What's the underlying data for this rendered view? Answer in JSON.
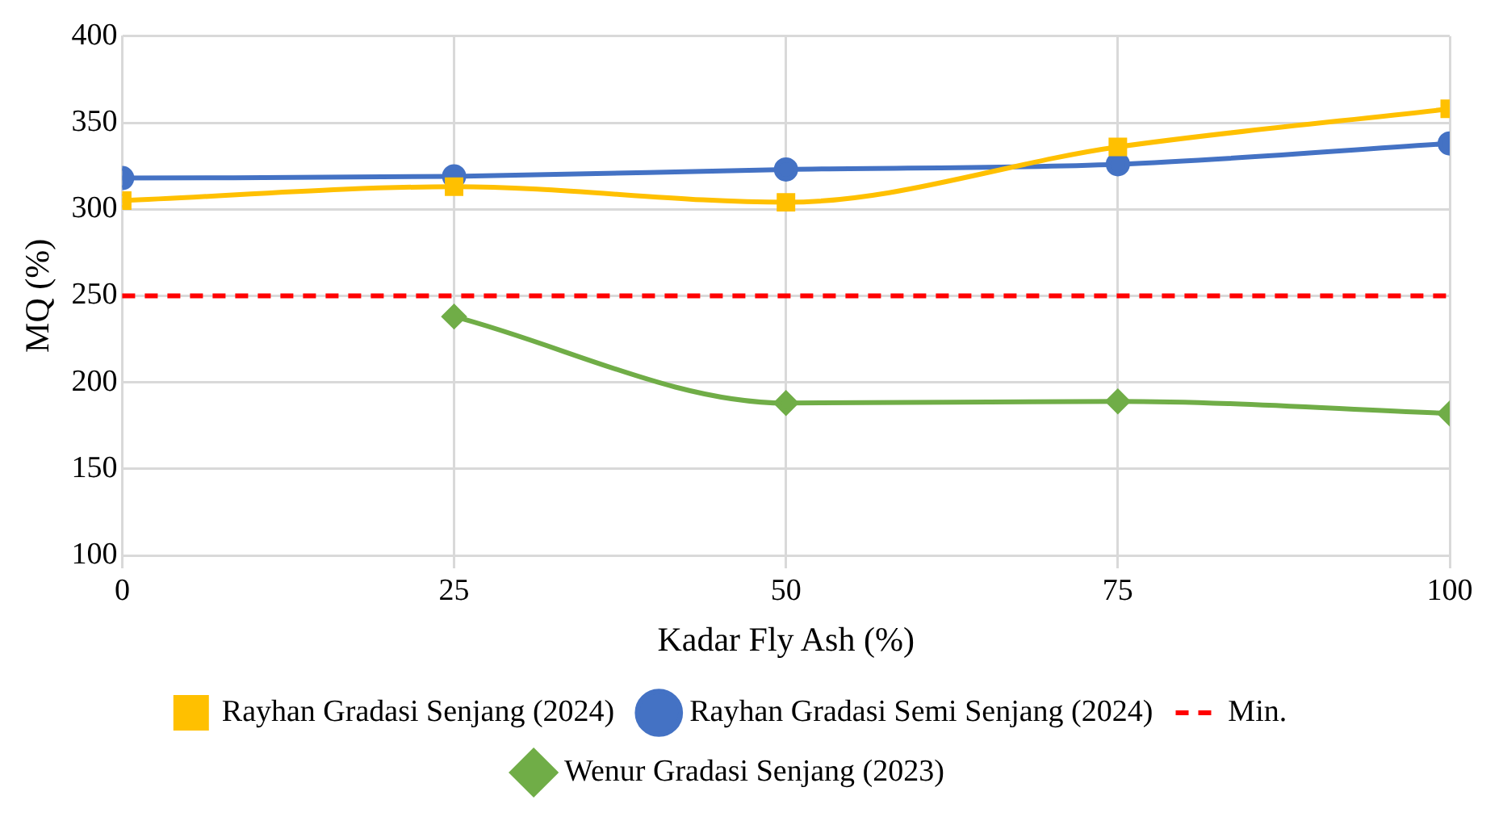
{
  "chart_data": {
    "type": "line",
    "xlabel": "Kadar Fly Ash (%)",
    "ylabel": "MQ (%)",
    "x": [
      0,
      25,
      50,
      75,
      100
    ],
    "series": [
      {
        "name": "Rayhan Gradasi Senjang (2024)",
        "color": "#ffc000",
        "marker": "square",
        "values": [
          305,
          313,
          304,
          336,
          358
        ]
      },
      {
        "name": "Rayhan Gradasi Semi Senjang (2024)",
        "color": "#4472c4",
        "marker": "circle",
        "values": [
          318,
          319,
          323,
          326,
          338
        ]
      },
      {
        "name": "Wenur Gradasi Senjang (2023)",
        "color": "#70ad47",
        "marker": "diamond",
        "values": [
          null,
          238,
          188,
          189,
          182
        ]
      }
    ],
    "ref_lines": [
      {
        "axis": "y",
        "value": 250,
        "label": "Min.",
        "color": "#ff0000",
        "line_style": "dashed"
      }
    ],
    "xlim": [
      0,
      100
    ],
    "xticks": [
      0,
      25,
      50,
      75,
      100
    ],
    "ylim": [
      100,
      400
    ],
    "yticks": [
      100,
      150,
      200,
      250,
      300,
      350,
      400
    ],
    "grid": true,
    "legend": "bottom"
  }
}
